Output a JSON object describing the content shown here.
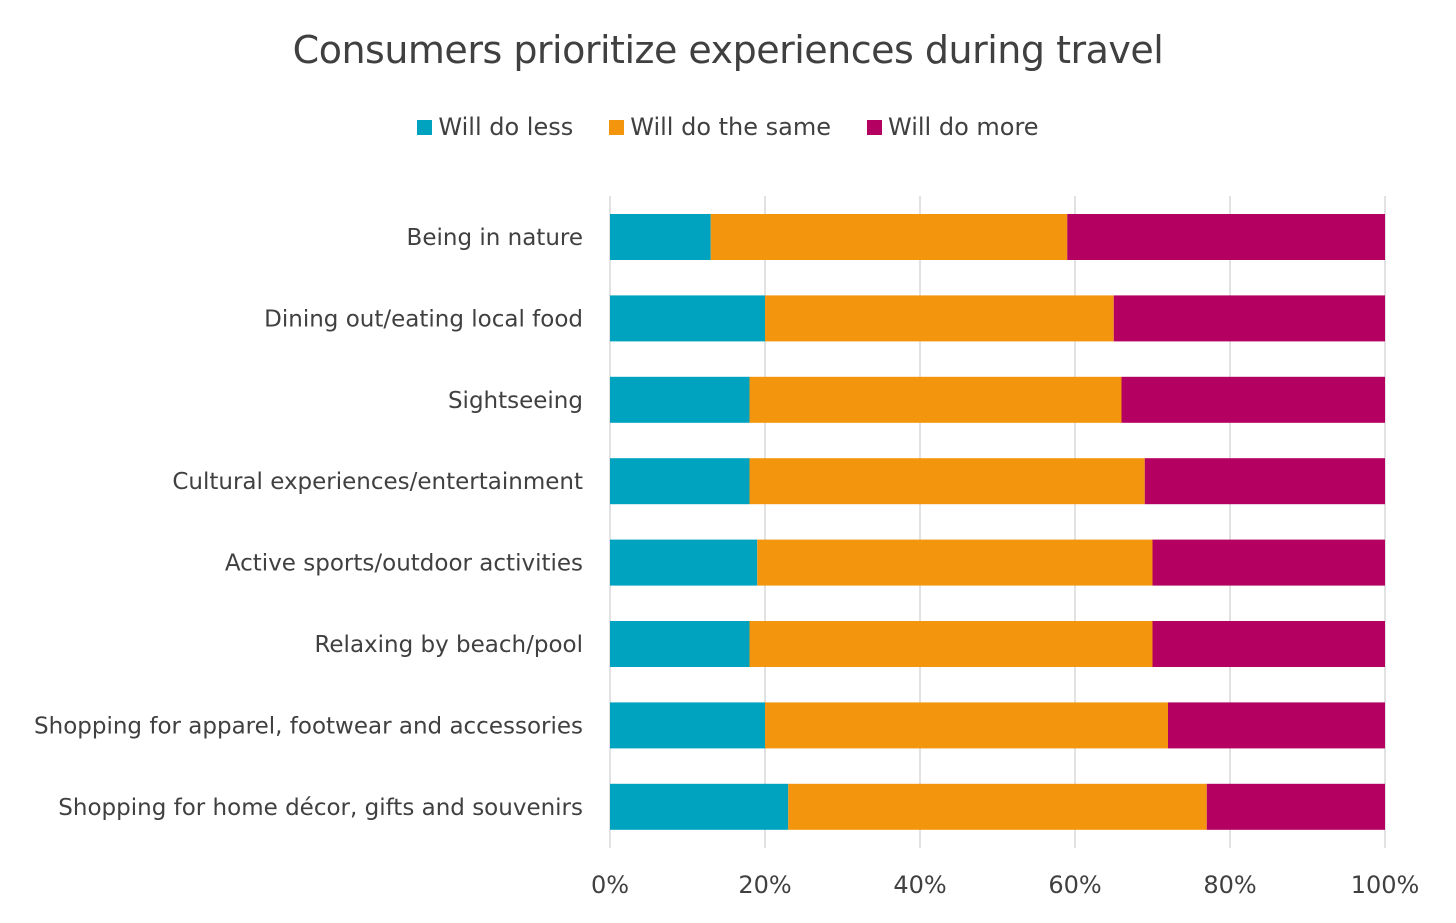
{
  "chart_data": {
    "type": "bar",
    "orientation": "horizontal",
    "stacked": "100%",
    "title": "Consumers prioritize experiences during travel",
    "categories": [
      "Being in nature",
      "Dining out/eating local food",
      "Sightseeing",
      "Cultural experiences/entertainment",
      "Active sports/outdoor activities",
      "Relaxing by beach/pool",
      "Shopping for apparel, footwear and accessories",
      "Shopping for home décor, gifts and souvenirs"
    ],
    "series": [
      {
        "name": "Will do less",
        "color": "#00A3BF",
        "values": [
          13,
          20,
          18,
          18,
          19,
          18,
          20,
          23
        ]
      },
      {
        "name": "Will do the same",
        "color": "#F4960D",
        "values": [
          46,
          45,
          48,
          51,
          51,
          52,
          52,
          54
        ]
      },
      {
        "name": "Will do more",
        "color": "#B30061",
        "values": [
          41,
          35,
          34,
          31,
          30,
          30,
          28,
          23
        ]
      }
    ],
    "xlim": [
      0,
      100
    ],
    "x_ticks": [
      "0%",
      "20%",
      "40%",
      "60%",
      "80%",
      "100%"
    ],
    "grid": true,
    "legend_position": "top"
  }
}
